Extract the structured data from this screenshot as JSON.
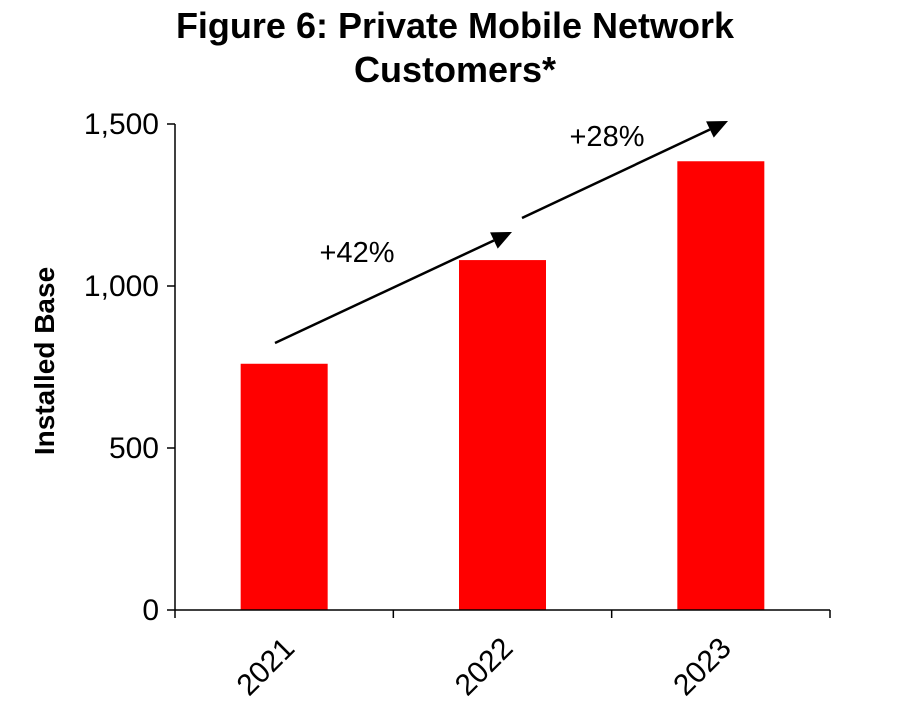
{
  "chart_data": {
    "type": "bar",
    "title": "Figure 6: Private Mobile Network Customers*",
    "title_lines": [
      "Figure 6: Private Mobile Network",
      "Customers*"
    ],
    "categories": [
      "2021",
      "2022",
      "2023"
    ],
    "values": [
      760,
      1080,
      1385
    ],
    "xlabel": "",
    "ylabel": "Installed Base",
    "ylim": [
      0,
      1500
    ],
    "yticks": [
      0,
      500,
      1000,
      1500
    ],
    "ytick_labels": [
      "0",
      "500",
      "1,000",
      "1,500"
    ],
    "bar_color": "#ff0000",
    "grid": false,
    "legend": "none",
    "annotations": [
      {
        "text": "+42%",
        "from": "2021",
        "to": "2022"
      },
      {
        "text": "+28%",
        "from": "2022",
        "to": "2023"
      }
    ]
  }
}
